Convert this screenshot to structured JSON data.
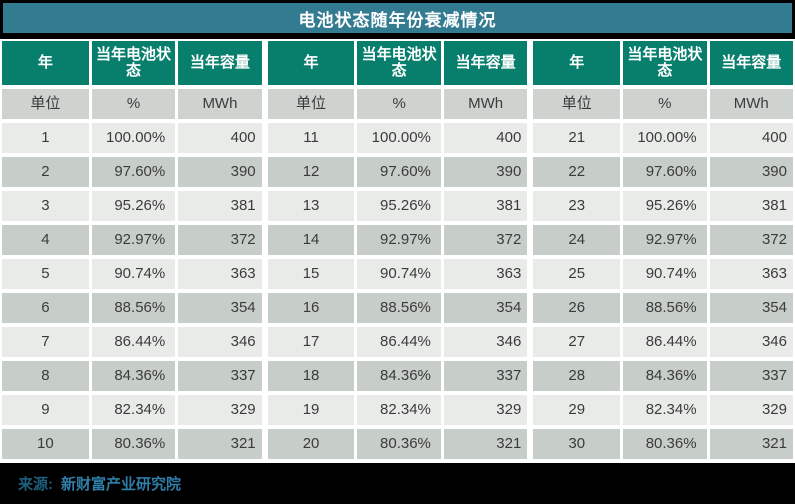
{
  "title": "电池状态随年份衰减情况",
  "colors": {
    "title_bg": "#337b91",
    "header_bg": "#087e6d",
    "row_odd": "#e9ebe9",
    "row_even": "#c7cec9",
    "unit_row_bg": "#ced3d0",
    "footer_bg": "#000000",
    "source_label_color": "#1d5f7d",
    "source_name_color": "#2e7ea8"
  },
  "table": {
    "headers": [
      "年",
      "当年电池状态",
      "当年容量"
    ],
    "unit_row": [
      "单位",
      "%",
      "MWh"
    ],
    "groups": [
      {
        "rows": [
          [
            "1",
            "100.00%",
            "400"
          ],
          [
            "2",
            "97.60%",
            "390"
          ],
          [
            "3",
            "95.26%",
            "381"
          ],
          [
            "4",
            "92.97%",
            "372"
          ],
          [
            "5",
            "90.74%",
            "363"
          ],
          [
            "6",
            "88.56%",
            "354"
          ],
          [
            "7",
            "86.44%",
            "346"
          ],
          [
            "8",
            "84.36%",
            "337"
          ],
          [
            "9",
            "82.34%",
            "329"
          ],
          [
            "10",
            "80.36%",
            "321"
          ]
        ]
      },
      {
        "rows": [
          [
            "11",
            "100.00%",
            "400"
          ],
          [
            "12",
            "97.60%",
            "390"
          ],
          [
            "13",
            "95.26%",
            "381"
          ],
          [
            "14",
            "92.97%",
            "372"
          ],
          [
            "15",
            "90.74%",
            "363"
          ],
          [
            "16",
            "88.56%",
            "354"
          ],
          [
            "17",
            "86.44%",
            "346"
          ],
          [
            "18",
            "84.36%",
            "337"
          ],
          [
            "19",
            "82.34%",
            "329"
          ],
          [
            "20",
            "80.36%",
            "321"
          ]
        ]
      },
      {
        "rows": [
          [
            "21",
            "100.00%",
            "400"
          ],
          [
            "22",
            "97.60%",
            "390"
          ],
          [
            "23",
            "95.26%",
            "381"
          ],
          [
            "24",
            "92.97%",
            "372"
          ],
          [
            "25",
            "90.74%",
            "363"
          ],
          [
            "26",
            "88.56%",
            "354"
          ],
          [
            "27",
            "86.44%",
            "346"
          ],
          [
            "28",
            "84.36%",
            "337"
          ],
          [
            "29",
            "82.34%",
            "329"
          ],
          [
            "30",
            "80.36%",
            "321"
          ]
        ]
      }
    ]
  },
  "footer": {
    "source_label": "来源:",
    "source_name": "新财富产业研究院"
  },
  "chart_data": {
    "type": "table",
    "title": "电池状态随年份衰减情况",
    "columns": [
      "年",
      "当年电池状态 (%)",
      "当年容量 (MWh)"
    ],
    "years": [
      1,
      2,
      3,
      4,
      5,
      6,
      7,
      8,
      9,
      10,
      11,
      12,
      13,
      14,
      15,
      16,
      17,
      18,
      19,
      20,
      21,
      22,
      23,
      24,
      25,
      26,
      27,
      28,
      29,
      30
    ],
    "soh_percent": [
      100.0,
      97.6,
      95.26,
      92.97,
      90.74,
      88.56,
      86.44,
      84.36,
      82.34,
      80.36,
      100.0,
      97.6,
      95.26,
      92.97,
      90.74,
      88.56,
      86.44,
      84.36,
      82.34,
      80.36,
      100.0,
      97.6,
      95.26,
      92.97,
      90.74,
      88.56,
      86.44,
      84.36,
      82.34,
      80.36
    ],
    "capacity_mwh": [
      400,
      390,
      381,
      372,
      363,
      354,
      346,
      337,
      329,
      321,
      400,
      390,
      381,
      372,
      363,
      354,
      346,
      337,
      329,
      321,
      400,
      390,
      381,
      372,
      363,
      354,
      346,
      337,
      329,
      321
    ],
    "layout": "three side-by-side column groups of 10 years each; values repeat each decade",
    "source": "新财富产业研究院"
  }
}
